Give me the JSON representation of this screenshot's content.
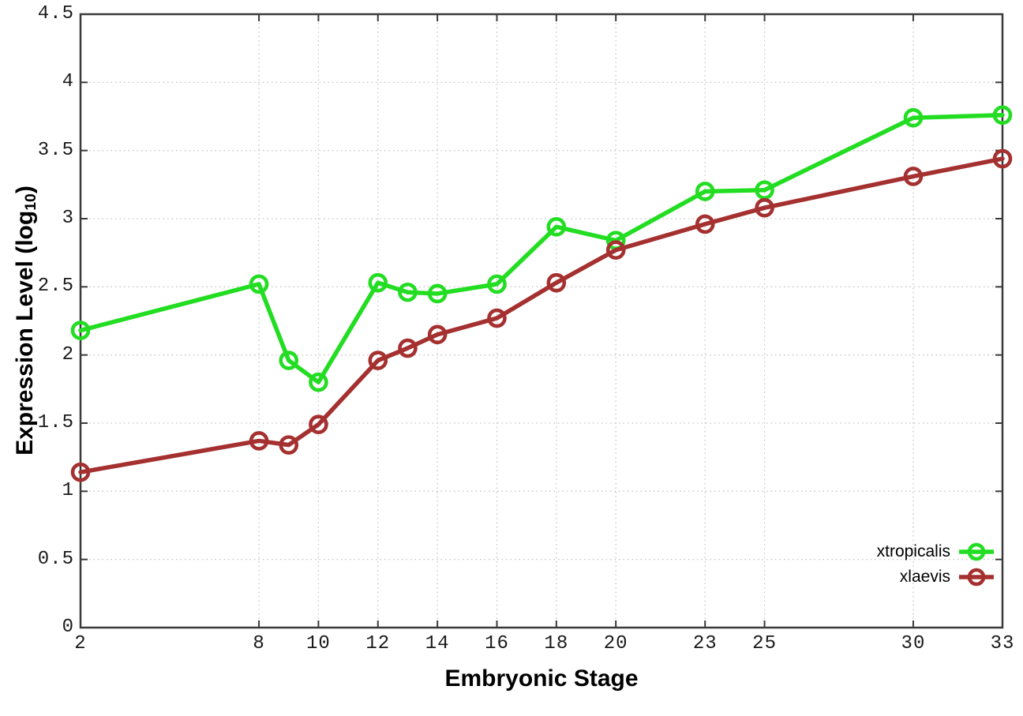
{
  "chart_data": {
    "type": "line",
    "title": "",
    "xlabel": "Embryonic Stage",
    "ylabel": "Expression Level (log10)",
    "ylabel_parts": {
      "prefix": "Expression Level (log",
      "sub": "10",
      "suffix": ")"
    },
    "xlim": [
      2,
      33
    ],
    "ylim": [
      0,
      4.5
    ],
    "x_tick_values": [
      2,
      8,
      10,
      12,
      14,
      16,
      18,
      20,
      23,
      25,
      30,
      33
    ],
    "x_tick_labels": [
      "2",
      "8",
      "10",
      "12",
      "14",
      "16",
      "18",
      "20",
      "23",
      "25",
      "30",
      "33"
    ],
    "y_tick_values": [
      0,
      0.5,
      1,
      1.5,
      2,
      2.5,
      3,
      3.5,
      4,
      4.5
    ],
    "y_tick_labels": [
      "0",
      "0.5",
      "1",
      "1.5",
      "2",
      "2.5",
      "3",
      "3.5",
      "4",
      "4.5"
    ],
    "grid": true,
    "legend_position": "inside-bottom-right",
    "x": [
      2,
      8,
      9,
      10,
      12,
      13,
      14,
      16,
      18,
      20,
      23,
      25,
      30,
      33
    ],
    "series": [
      {
        "name": "xtropicalis",
        "color": "#22dd22",
        "marker": "open-circle",
        "values": [
          2.18,
          2.52,
          1.96,
          1.8,
          2.53,
          2.46,
          2.45,
          2.52,
          2.94,
          2.84,
          3.2,
          3.21,
          3.74,
          3.76
        ]
      },
      {
        "name": "xlaevis",
        "color": "#a53030",
        "marker": "open-circle",
        "values": [
          1.14,
          1.37,
          1.34,
          1.49,
          1.96,
          2.05,
          2.15,
          2.27,
          2.53,
          2.77,
          2.96,
          3.08,
          3.31,
          3.44
        ]
      }
    ],
    "axis_color": "#3a3a3a",
    "grid_color": "#c4c4c4",
    "background": "#ffffff"
  }
}
